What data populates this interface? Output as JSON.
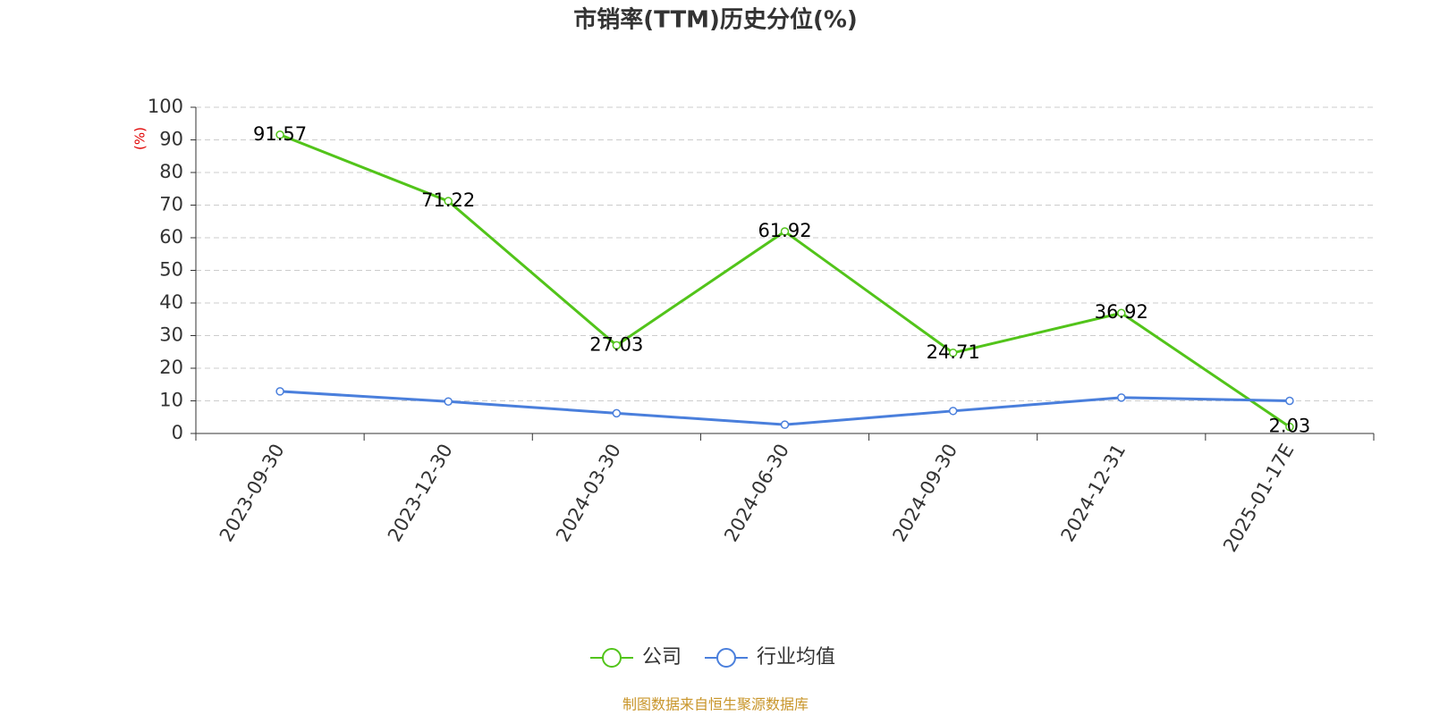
{
  "chart_data": {
    "type": "line",
    "title": "市销率(TTM)历史分位(%)",
    "ylabel": "(%)",
    "categories": [
      "2023-09-30",
      "2023-12-30",
      "2024-03-30",
      "2024-06-30",
      "2024-09-30",
      "2024-12-31",
      "2025-01-17E"
    ],
    "series": [
      {
        "name": "公司",
        "color": "#52c41a",
        "values": [
          91.57,
          71.22,
          27.03,
          61.92,
          24.71,
          36.92,
          2.03
        ],
        "show_labels": true
      },
      {
        "name": "行业均值",
        "color": "#4a7fdc",
        "values": [
          12.9,
          9.8,
          6.2,
          2.7,
          6.9,
          11.0,
          10.0
        ],
        "show_labels": false
      }
    ],
    "ylim": [
      0,
      100
    ],
    "yticks": [
      0,
      10,
      20,
      30,
      40,
      50,
      60,
      70,
      80,
      90,
      100
    ],
    "grid": true,
    "source": "制图数据来自恒生聚源数据库"
  }
}
